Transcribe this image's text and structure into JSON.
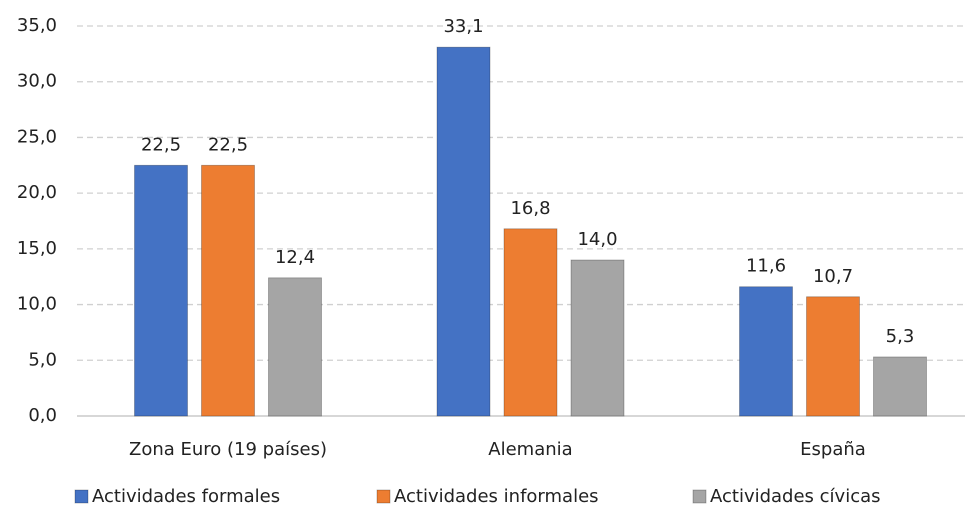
{
  "chart_data": {
    "type": "bar",
    "categories": [
      "Zona Euro (19 países)",
      "Alemania",
      "España"
    ],
    "series": [
      {
        "name": "Actividades formales",
        "color": "#4472c4",
        "values": [
          22.5,
          33.1,
          11.6
        ],
        "value_labels": [
          "22,5",
          "33,1",
          "11,6"
        ]
      },
      {
        "name": "Actividades informales",
        "color": "#ed7d31",
        "values": [
          22.5,
          16.8,
          10.7
        ],
        "value_labels": [
          "22,5",
          "16,8",
          "10,7"
        ]
      },
      {
        "name": "Actividades cívicas",
        "color": "#a5a5a5",
        "values": [
          12.4,
          14.0,
          5.3
        ],
        "value_labels": [
          "12,4",
          "14,0",
          "5,3"
        ]
      }
    ],
    "ylim": [
      0,
      35
    ],
    "yticks": [
      {
        "value": 0,
        "label": "0,0"
      },
      {
        "value": 5,
        "label": "5,0"
      },
      {
        "value": 10,
        "label": "10,0"
      },
      {
        "value": 15,
        "label": "15,0"
      },
      {
        "value": 20,
        "label": "20,0"
      },
      {
        "value": 25,
        "label": "25,0"
      },
      {
        "value": 30,
        "label": "30,0"
      },
      {
        "value": 35,
        "label": "35,0"
      }
    ],
    "grid": true,
    "legend": "bottom"
  }
}
